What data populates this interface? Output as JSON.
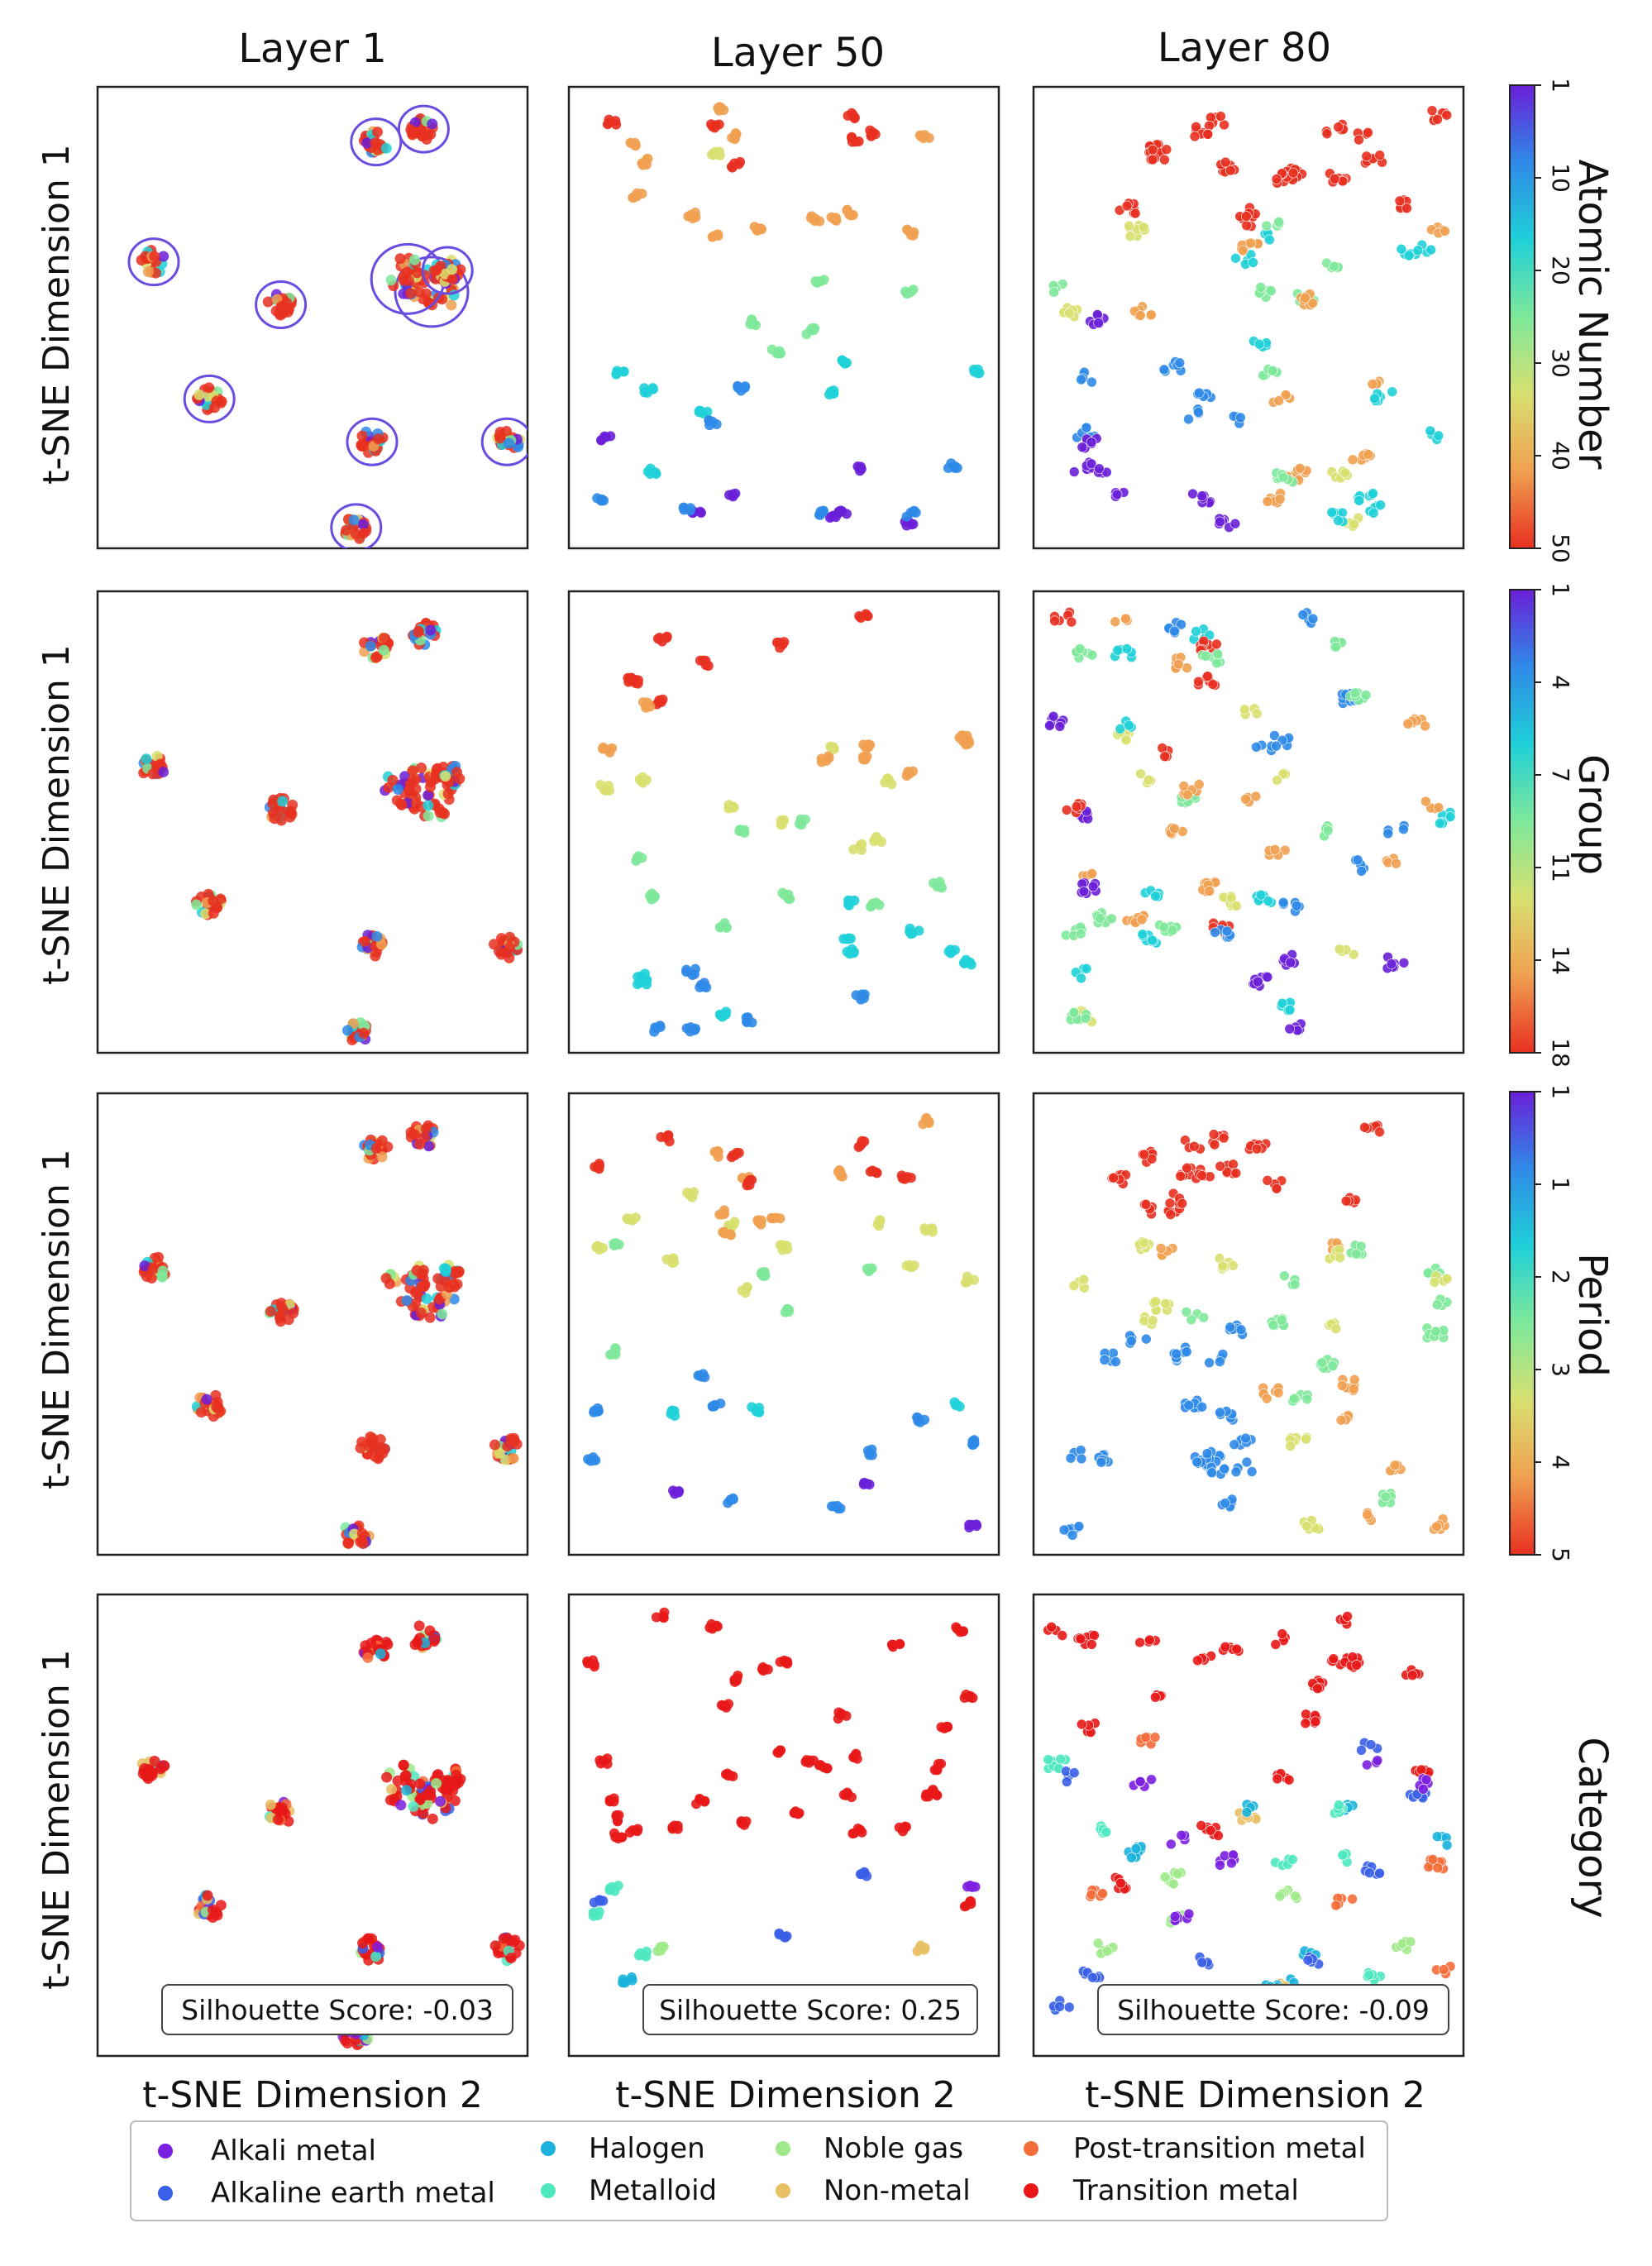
{
  "columns": [
    "Layer 1",
    "Layer 50",
    "Layer 80"
  ],
  "ylabel": "t-SNE Dimension 1",
  "xlabel": "t-SNE Dimension 2",
  "rows": [
    {
      "label": "Atomic Number",
      "colorbar_ticks": [
        "1",
        "10",
        "20",
        "30",
        "40",
        "50"
      ]
    },
    {
      "label": "Group",
      "colorbar_ticks": [
        "1",
        "4",
        "7",
        "11",
        "14",
        "18"
      ]
    },
    {
      "label": "Period",
      "colorbar_ticks": [
        "1",
        "1",
        "2",
        "3",
        "4",
        "5"
      ]
    },
    {
      "label": "Category",
      "colorbar_ticks": []
    }
  ],
  "silhouette": [
    "Silhouette Score: -0.03",
    "Silhouette Score: 0.25",
    "Silhouette Score: -0.09"
  ],
  "legend": [
    {
      "name": "Alkali metal",
      "color": "#7b1fe0"
    },
    {
      "name": "Alkaline earth metal",
      "color": "#3a5fe8"
    },
    {
      "name": "Halogen",
      "color": "#1ab2dc"
    },
    {
      "name": "Metalloid",
      "color": "#4ee8c0"
    },
    {
      "name": "Noble gas",
      "color": "#9eea8a"
    },
    {
      "name": "Non-metal",
      "color": "#e8c064"
    },
    {
      "name": "Post-transition metal",
      "color": "#f46d3b"
    },
    {
      "name": "Transition metal",
      "color": "#e81818"
    }
  ],
  "colormap": [
    "#6a1fd8",
    "#2f8ae8",
    "#1fd0d8",
    "#7ee89a",
    "#d8e070",
    "#f0a050",
    "#e83020"
  ],
  "chart_data": [
    {
      "type": "scatter",
      "title": "Layer 1",
      "xlabel": "t-SNE Dimension 2",
      "ylabel": "t-SNE Dimension 1",
      "color_by": [
        "Atomic Number",
        "Group",
        "Period",
        "Category"
      ],
      "clusters": [
        {
          "x": 0.78,
          "y": 0.94
        },
        {
          "x": 0.66,
          "y": 0.91
        },
        {
          "x": 0.1,
          "y": 0.63
        },
        {
          "x": 0.8,
          "y": 0.56
        },
        {
          "x": 0.74,
          "y": 0.59
        },
        {
          "x": 0.84,
          "y": 0.61
        },
        {
          "x": 0.42,
          "y": 0.53
        },
        {
          "x": 0.24,
          "y": 0.31
        },
        {
          "x": 0.65,
          "y": 0.21
        },
        {
          "x": 0.99,
          "y": 0.21
        },
        {
          "x": 0.61,
          "y": 0.01
        }
      ],
      "silhouette_score": -0.03,
      "grid": false
    },
    {
      "type": "scatter",
      "title": "Layer 50",
      "xlabel": "t-SNE Dimension 2",
      "ylabel": "t-SNE Dimension 1",
      "color_by": [
        "Atomic Number",
        "Group",
        "Period",
        "Category"
      ],
      "silhouette_score": 0.25,
      "grid": false
    },
    {
      "type": "scatter",
      "title": "Layer 80",
      "xlabel": "t-SNE Dimension 2",
      "ylabel": "t-SNE Dimension 1",
      "color_by": [
        "Atomic Number",
        "Group",
        "Period",
        "Category"
      ],
      "silhouette_score": -0.09,
      "grid": false
    }
  ]
}
